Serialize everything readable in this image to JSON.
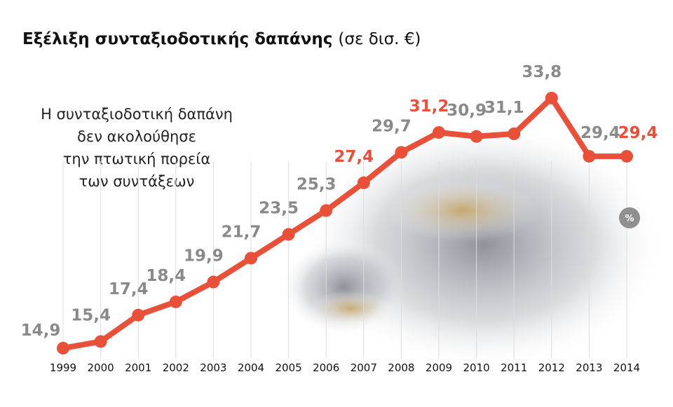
{
  "chart_data": {
    "type": "line",
    "title": "Εξέλιξη συνταξιοδοτικής δαπάνης",
    "subtitle": "(σε δισ. €)",
    "annotation": [
      "Η συνταξιοδοτική δαπάνη",
      "δεν ακολούθησε",
      "την πτωτική πορεία",
      "των συντάξεων"
    ],
    "badge": "%",
    "categories": [
      "1999",
      "2000",
      "2001",
      "2002",
      "2003",
      "2004",
      "2005",
      "2006",
      "2007",
      "2008",
      "2009",
      "2010",
      "2011",
      "2012",
      "2013",
      "2014"
    ],
    "values": [
      14.9,
      15.4,
      17.4,
      18.4,
      19.9,
      21.7,
      23.5,
      25.3,
      27.4,
      29.7,
      31.2,
      30.9,
      31.1,
      33.8,
      29.4,
      29.4
    ],
    "value_labels": [
      "14,9",
      "15,4",
      "17,4",
      "18,4",
      "19,9",
      "21,7",
      "23,5",
      "25,3",
      "27,4",
      "29,7",
      "31,2",
      "30,9",
      "31,1",
      "33,8",
      "29,4",
      "29,4"
    ],
    "color": "#e8503a",
    "label_colors": [
      "#8a8a8a",
      "#8a8a8a",
      "#8a8a8a",
      "#8a8a8a",
      "#8a8a8a",
      "#8a8a8a",
      "#8a8a8a",
      "#8a8a8a",
      "#e8503a",
      "#8a8a8a",
      "#e8503a",
      "#8a8a8a",
      "#8a8a8a",
      "#8a8a8a",
      "#8a8a8a",
      "#e8503a"
    ]
  }
}
